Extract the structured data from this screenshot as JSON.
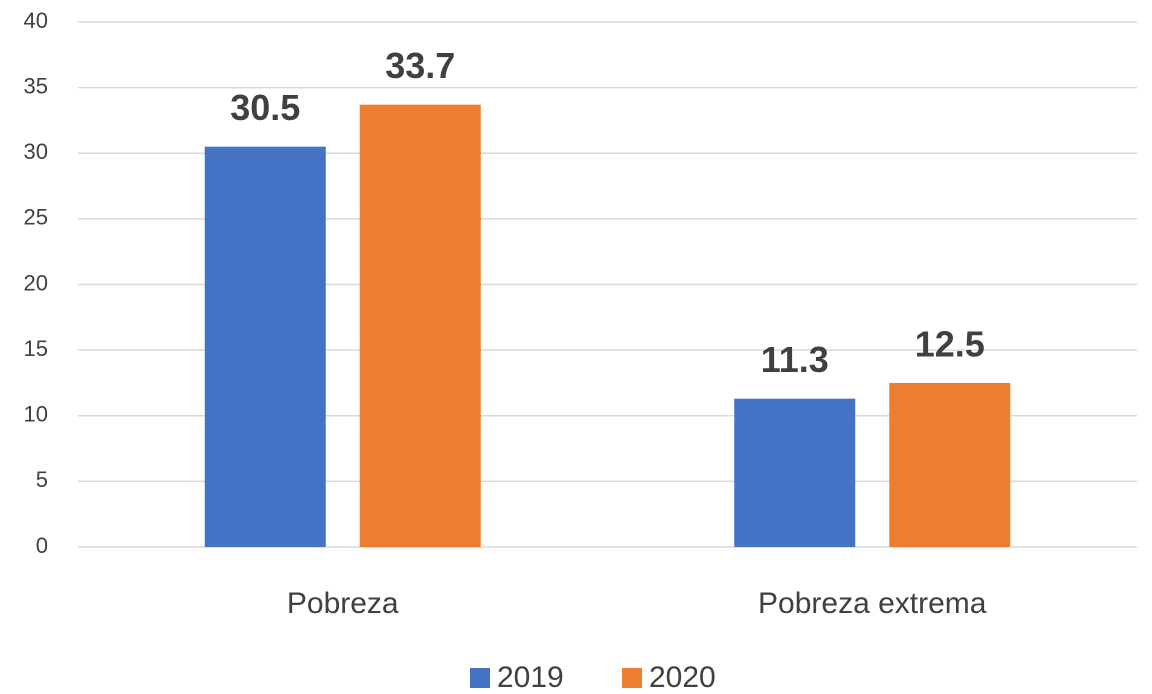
{
  "chart_data": {
    "type": "bar",
    "categories": [
      "Pobreza",
      "Pobreza extrema"
    ],
    "series": [
      {
        "name": "2019",
        "color": "#4472c4",
        "values": [
          30.5,
          11.3
        ]
      },
      {
        "name": "2020",
        "color": "#ed7d31",
        "values": [
          33.7,
          12.5
        ]
      }
    ],
    "ylim": [
      0,
      40
    ],
    "yticks": [
      0,
      5,
      10,
      15,
      20,
      25,
      30,
      35,
      40
    ],
    "grid": true,
    "legend": "bottom"
  }
}
